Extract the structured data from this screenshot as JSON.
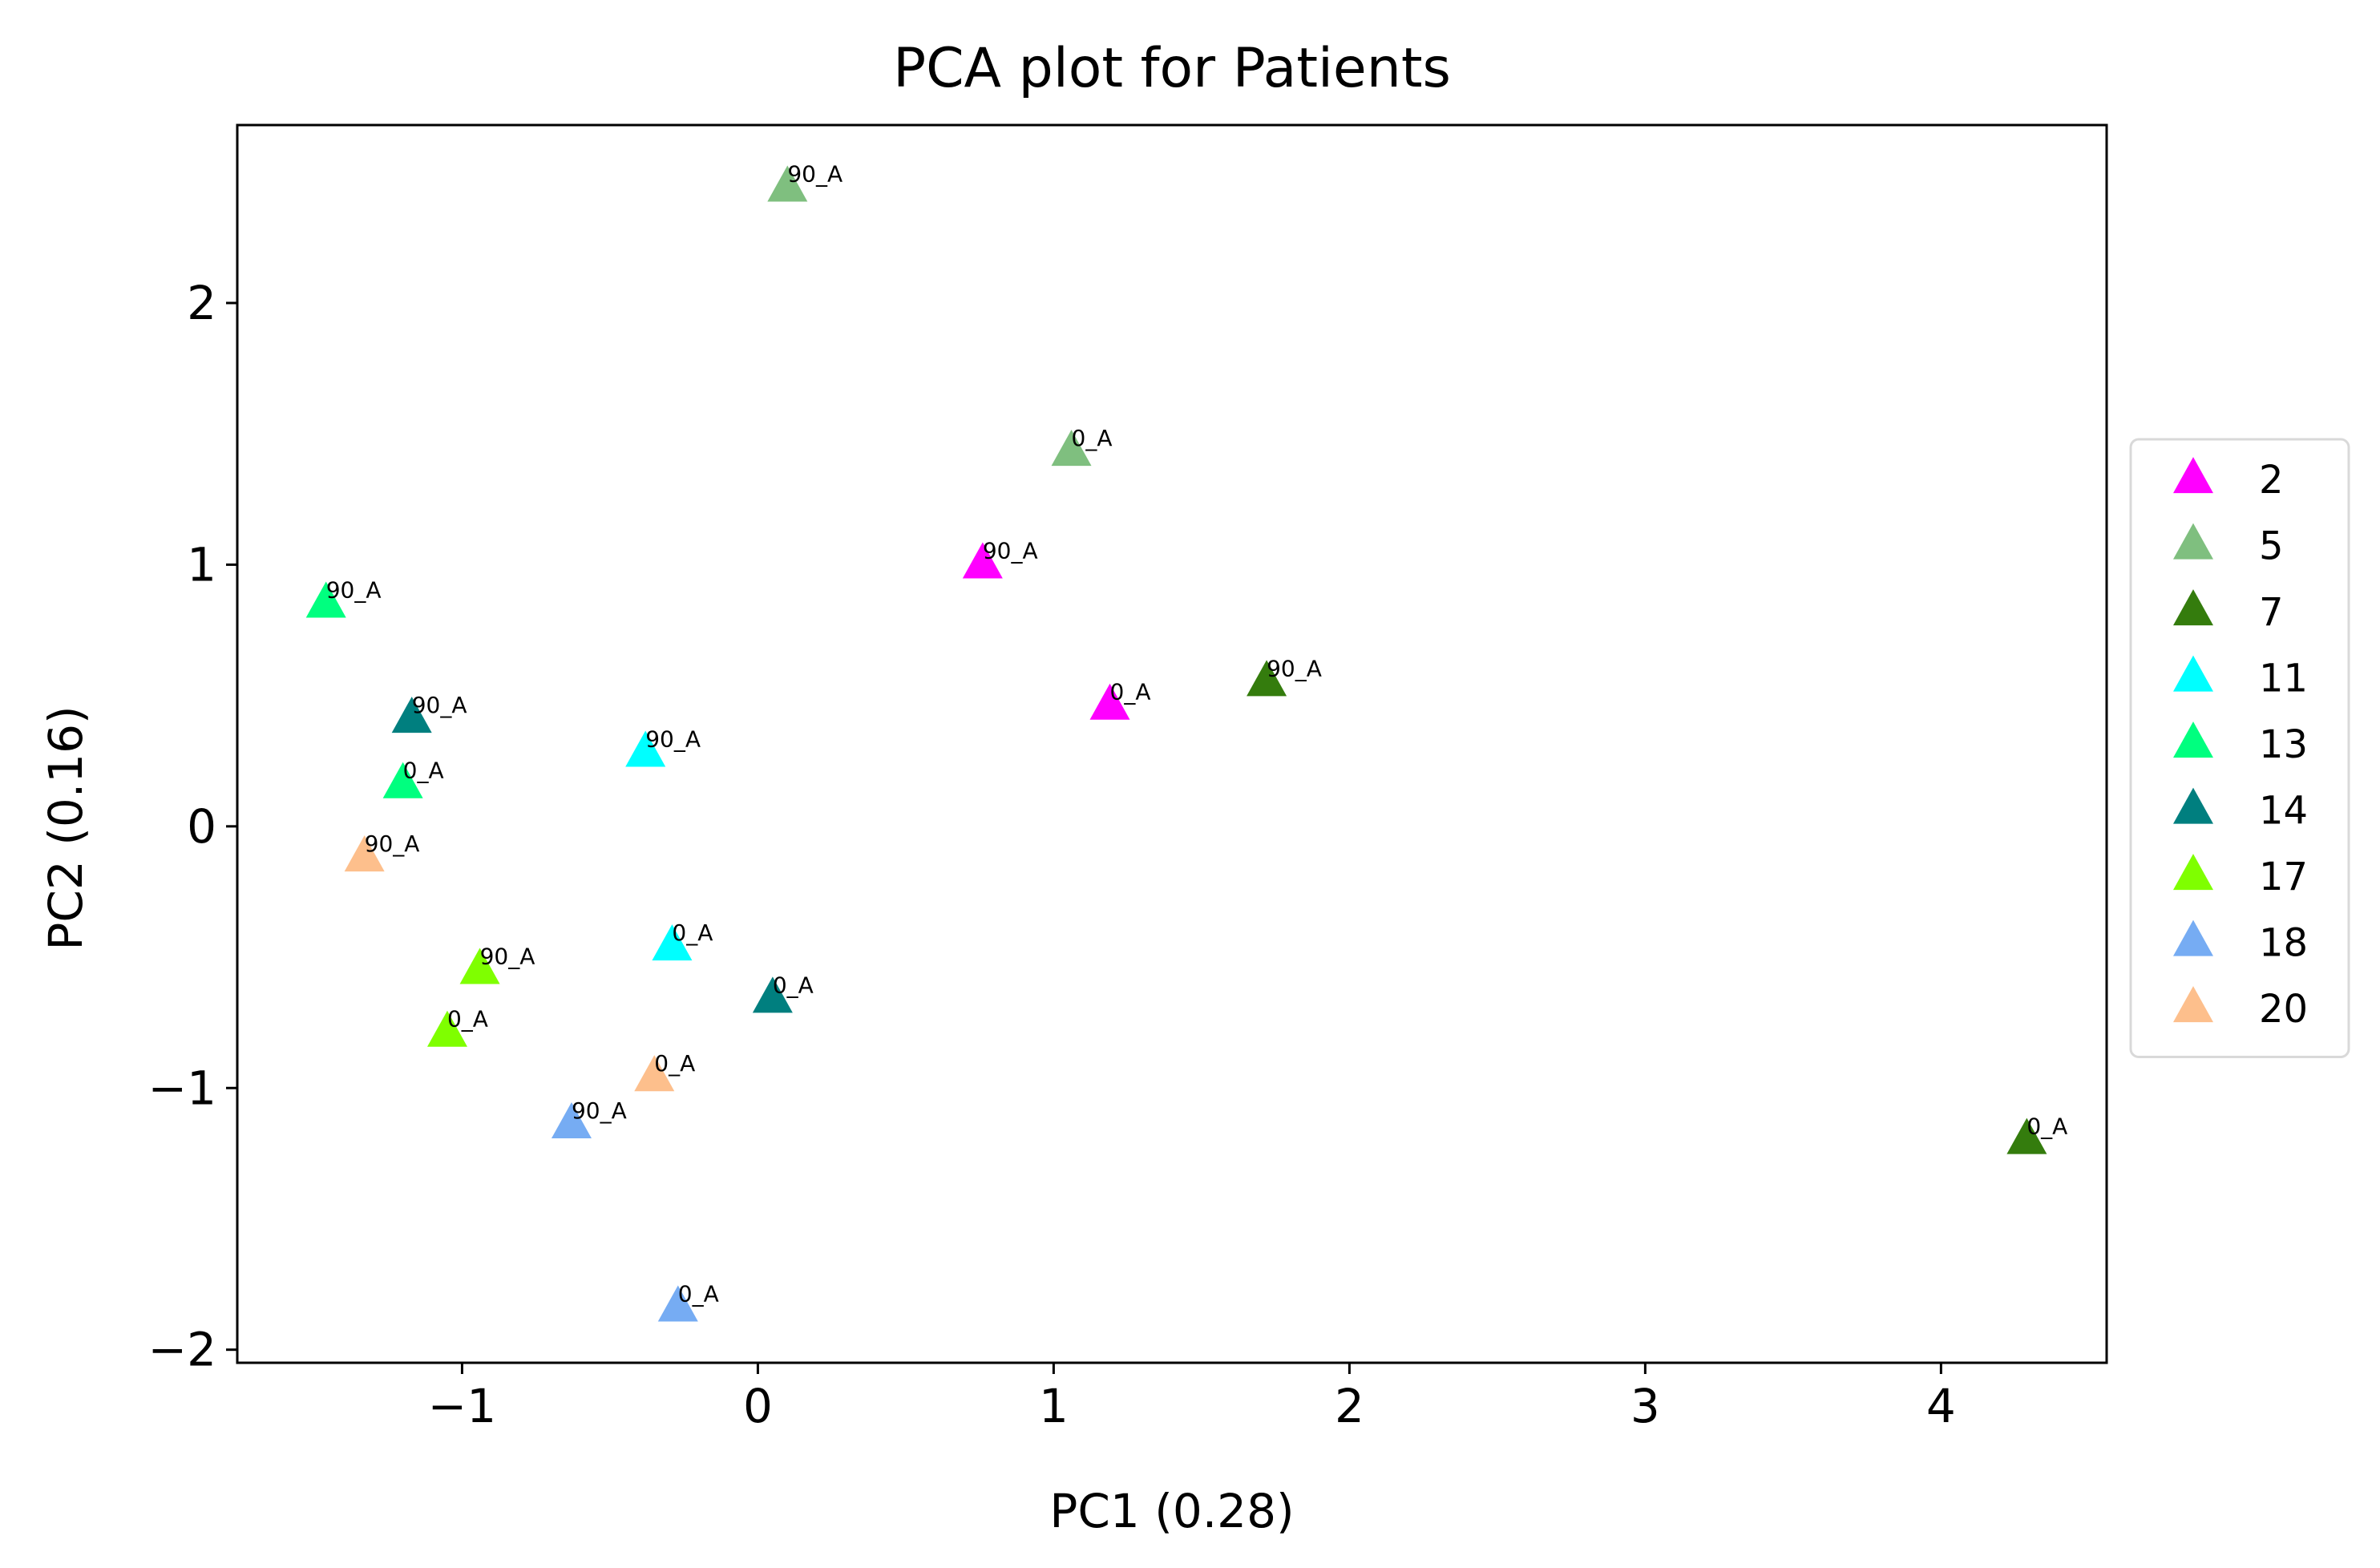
{
  "chart_data": {
    "type": "scatter",
    "title": "PCA plot for Patients",
    "xlabel": "PC1 (0.28)",
    "ylabel": "PC2 (0.16)",
    "xlim": [
      -1.76,
      4.56
    ],
    "ylim": [
      -2.05,
      2.68
    ],
    "x_ticks": [
      {
        "value": -1,
        "label": "−1"
      },
      {
        "value": 0,
        "label": "0"
      },
      {
        "value": 1,
        "label": "1"
      },
      {
        "value": 2,
        "label": "2"
      },
      {
        "value": 3,
        "label": "3"
      },
      {
        "value": 4,
        "label": "4"
      }
    ],
    "y_ticks": [
      {
        "value": -2,
        "label": "−2"
      },
      {
        "value": -1,
        "label": "−1"
      },
      {
        "value": 0,
        "label": "0"
      },
      {
        "value": 1,
        "label": "1"
      },
      {
        "value": 2,
        "label": "2"
      }
    ],
    "grid": false,
    "legend_position": "center-right outside",
    "marker": "triangle",
    "series": [
      {
        "name": "2",
        "color": "#ff00ff",
        "points": [
          {
            "x": 0.76,
            "y": 1.0,
            "label": "90_A"
          },
          {
            "x": 1.19,
            "y": 0.46,
            "label": "0_A"
          }
        ]
      },
      {
        "name": "5",
        "color": "#7fbf7f",
        "points": [
          {
            "x": 0.1,
            "y": 2.44,
            "label": "90_A"
          },
          {
            "x": 1.06,
            "y": 1.43,
            "label": "0_A"
          }
        ]
      },
      {
        "name": "7",
        "color": "#347c0d",
        "points": [
          {
            "x": 1.72,
            "y": 0.55,
            "label": "90_A"
          },
          {
            "x": 4.29,
            "y": -1.2,
            "label": "0_A"
          }
        ]
      },
      {
        "name": "11",
        "color": "#00ffff",
        "points": [
          {
            "x": -0.38,
            "y": 0.28,
            "label": "90_A"
          },
          {
            "x": -0.29,
            "y": -0.46,
            "label": "0_A"
          }
        ]
      },
      {
        "name": "13",
        "color": "#00ff7f",
        "points": [
          {
            "x": -1.46,
            "y": 0.85,
            "label": "90_A"
          },
          {
            "x": -1.2,
            "y": 0.16,
            "label": "0_A"
          }
        ]
      },
      {
        "name": "14",
        "color": "#007f7f",
        "points": [
          {
            "x": -1.17,
            "y": 0.41,
            "label": "90_A"
          },
          {
            "x": 0.05,
            "y": -0.66,
            "label": "0_A"
          }
        ]
      },
      {
        "name": "17",
        "color": "#7fff00",
        "points": [
          {
            "x": -0.94,
            "y": -0.55,
            "label": "90_A"
          },
          {
            "x": -1.05,
            "y": -0.79,
            "label": "0_A"
          }
        ]
      },
      {
        "name": "18",
        "color": "#76acf3",
        "points": [
          {
            "x": -0.63,
            "y": -1.14,
            "label": "90_A"
          },
          {
            "x": -0.27,
            "y": -1.84,
            "label": "0_A"
          }
        ]
      },
      {
        "name": "20",
        "color": "#fdbf8c",
        "points": [
          {
            "x": -1.33,
            "y": -0.12,
            "label": "90_A"
          },
          {
            "x": -0.35,
            "y": -0.96,
            "label": "0_A"
          }
        ]
      }
    ]
  }
}
